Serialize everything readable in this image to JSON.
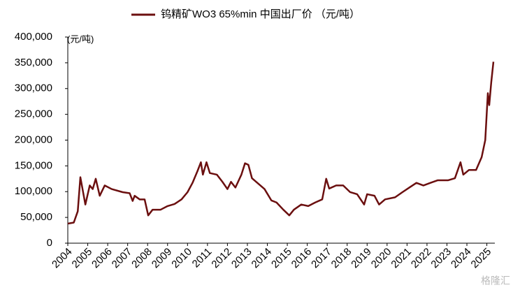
{
  "chart_data": {
    "type": "line",
    "y_unit_label": "(元/吨)",
    "watermark": "格隆汇",
    "legend_position": "top",
    "x": [
      2004,
      2004.3,
      2004.5,
      2004.63,
      2004.88,
      2005.1,
      2005.25,
      2005.4,
      2005.6,
      2005.85,
      2006.2,
      2006.75,
      2007.1,
      2007.25,
      2007.35,
      2007.6,
      2007.85,
      2008.03,
      2008.25,
      2008.65,
      2009.0,
      2009.35,
      2009.7,
      2010.0,
      2010.25,
      2010.5,
      2010.67,
      2010.77,
      2010.95,
      2011.12,
      2011.47,
      2011.75,
      2012.0,
      2012.18,
      2012.4,
      2012.7,
      2012.88,
      2013.05,
      2013.23,
      2013.5,
      2013.86,
      2014.2,
      2014.46,
      2014.8,
      2015.1,
      2015.33,
      2015.7,
      2016.05,
      2016.4,
      2016.75,
      2016.95,
      2017.1,
      2017.45,
      2017.8,
      2018.15,
      2018.5,
      2018.85,
      2019.0,
      2019.37,
      2019.6,
      2019.9,
      2020.4,
      2020.77,
      2021.12,
      2021.47,
      2021.82,
      2022.17,
      2022.53,
      2023.05,
      2023.4,
      2023.68,
      2023.82,
      2024.1,
      2024.46,
      2024.74,
      2024.92,
      2025.05,
      2025.12,
      2025.22,
      2025.33
    ],
    "series": [
      {
        "name": "钨精矿WO3 65%min 中国出厂价 （元/吨）",
        "color": "#6b0f0f",
        "values": [
          38000,
          40000,
          62000,
          128000,
          75000,
          112000,
          105000,
          125000,
          92000,
          112000,
          105000,
          99000,
          97000,
          82000,
          92000,
          85000,
          85000,
          54000,
          65000,
          65000,
          72000,
          76000,
          85000,
          99000,
          117000,
          140000,
          157000,
          133000,
          157000,
          136000,
          133000,
          119000,
          105000,
          119000,
          108000,
          133000,
          155000,
          152000,
          126000,
          117000,
          105000,
          83000,
          79000,
          65000,
          54000,
          65000,
          75000,
          72000,
          79000,
          85000,
          125000,
          106000,
          112000,
          112000,
          99000,
          95000,
          75000,
          95000,
          92000,
          75000,
          85000,
          89000,
          99000,
          108000,
          117000,
          112000,
          117000,
          122000,
          122000,
          126000,
          157000,
          133000,
          142000,
          142000,
          167000,
          200000,
          291000,
          268000,
          312000,
          352000
        ]
      }
    ],
    "xlim": [
      2004,
      2025.4
    ],
    "xticks": [
      2004,
      2005,
      2006,
      2007,
      2008,
      2009,
      2010,
      2011,
      2012,
      2013,
      2014,
      2015,
      2016,
      2017,
      2018,
      2019,
      2020,
      2021,
      2022,
      2023,
      2024,
      2025
    ],
    "ylim": [
      0,
      400000
    ],
    "yticks": [
      0,
      {
        "value": 50000,
        "label": "50,000"
      },
      {
        "value": 100000,
        "label": "100,000"
      },
      {
        "value": 150000,
        "label": "150,000"
      },
      {
        "value": 200000,
        "label": "200,000"
      },
      {
        "value": 250000,
        "label": "250,000"
      },
      {
        "value": 300000,
        "label": "300,000"
      },
      {
        "value": 350000,
        "label": "350,000"
      },
      {
        "value": 400000,
        "label": "400,000"
      }
    ]
  }
}
